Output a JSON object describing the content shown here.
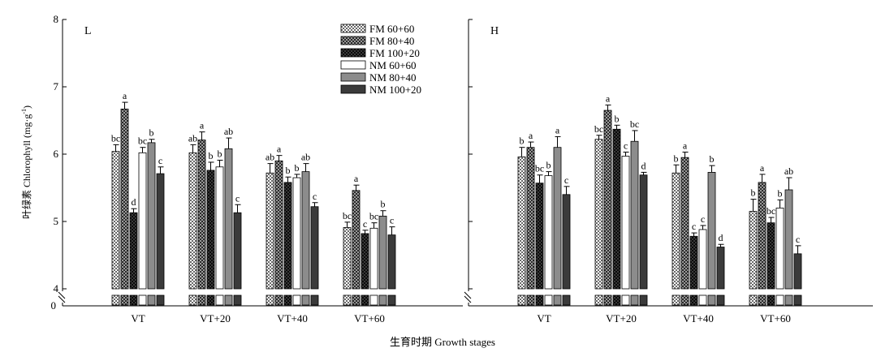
{
  "chart_data": {
    "type": "bar",
    "xlabel": "生育时期 Growth stages",
    "ylabel": "叶绿素 Chlorophyll (mg·g",
    "ylabel_sup": "-1",
    "ylabel_close": ")",
    "ylim": [
      4,
      8
    ],
    "axis_break": true,
    "yticks": [
      "0",
      "4",
      "5",
      "6",
      "7",
      "8"
    ],
    "categories": [
      "VT",
      "VT+20",
      "VT+40",
      "VT+60"
    ],
    "legend_position": "top-right of left panel",
    "series_styles": [
      {
        "name": "FM 60+60",
        "pattern": "checker-light"
      },
      {
        "name": "FM 80+40",
        "pattern": "checker-mid"
      },
      {
        "name": "FM 100+20",
        "pattern": "checker-dark"
      },
      {
        "name": "NM 60+60",
        "pattern": "white"
      },
      {
        "name": "NM 80+40",
        "pattern": "gray"
      },
      {
        "name": "NM 100+20",
        "pattern": "dark"
      }
    ],
    "panels": [
      {
        "label": "L",
        "series": [
          {
            "values": [
              6.04,
              6.02,
              5.72,
              4.91
            ],
            "errors": [
              0.1,
              0.12,
              0.14,
              0.08
            ],
            "letters": [
              "bc",
              "ab",
              "ab",
              "bc"
            ]
          },
          {
            "values": [
              6.67,
              6.21,
              5.9,
              5.46
            ],
            "errors": [
              0.1,
              0.12,
              0.08,
              0.08
            ],
            "letters": [
              "a",
              "a",
              "a",
              "a"
            ]
          },
          {
            "values": [
              5.13,
              5.76,
              5.58,
              4.82
            ],
            "errors": [
              0.06,
              0.12,
              0.08,
              0.05
            ],
            "letters": [
              "d",
              "b",
              "b",
              "c"
            ]
          },
          {
            "values": [
              6.02,
              5.81,
              5.65,
              4.9
            ],
            "errors": [
              0.08,
              0.1,
              0.05,
              0.08
            ],
            "letters": [
              "bc",
              "b",
              "b",
              "bc"
            ]
          },
          {
            "values": [
              6.17,
              6.08,
              5.74,
              5.08
            ],
            "errors": [
              0.05,
              0.16,
              0.12,
              0.08
            ],
            "letters": [
              "b",
              "ab",
              "ab",
              "b"
            ]
          },
          {
            "values": [
              5.71,
              5.13,
              5.22,
              4.8
            ],
            "errors": [
              0.1,
              0.12,
              0.06,
              0.12
            ],
            "letters": [
              "c",
              "c",
              "c",
              "c"
            ]
          }
        ]
      },
      {
        "label": "H",
        "series": [
          {
            "values": [
              5.96,
              6.22,
              5.72,
              5.15
            ],
            "errors": [
              0.14,
              0.06,
              0.12,
              0.18
            ],
            "letters": [
              "b",
              "bc",
              "b",
              "b"
            ]
          },
          {
            "values": [
              6.1,
              6.65,
              5.95,
              5.58
            ],
            "errors": [
              0.08,
              0.08,
              0.08,
              0.12
            ],
            "letters": [
              "a",
              "a",
              "a",
              "a"
            ]
          },
          {
            "values": [
              5.57,
              6.37,
              4.78,
              4.98
            ],
            "errors": [
              0.12,
              0.06,
              0.05,
              0.08
            ],
            "letters": [
              "bc",
              "b",
              "c",
              "bc"
            ]
          },
          {
            "values": [
              5.68,
              5.97,
              4.88,
              5.2
            ],
            "errors": [
              0.06,
              0.06,
              0.06,
              0.12
            ],
            "letters": [
              "b",
              "c",
              "c",
              "b"
            ]
          },
          {
            "values": [
              6.1,
              6.19,
              5.73,
              5.47
            ],
            "errors": [
              0.16,
              0.16,
              0.1,
              0.18
            ],
            "letters": [
              "a",
              "bc",
              "b",
              "ab"
            ]
          },
          {
            "values": [
              5.4,
              5.69,
              4.62,
              4.52
            ],
            "errors": [
              0.12,
              0.04,
              0.04,
              0.12
            ],
            "letters": [
              "c",
              "d",
              "d",
              "c"
            ]
          }
        ]
      }
    ]
  }
}
